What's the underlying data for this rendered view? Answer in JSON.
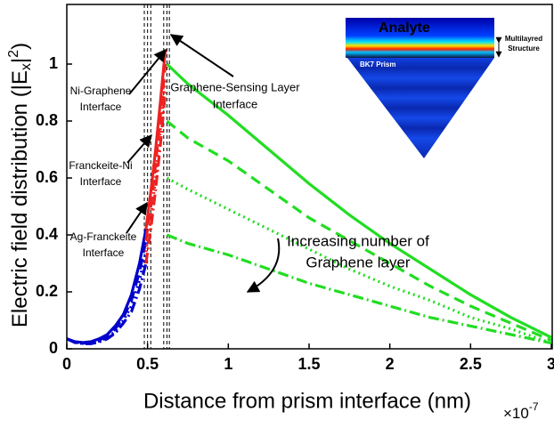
{
  "chart_data": {
    "type": "line",
    "xlabel": "Distance from prism interface (nm)",
    "ylabel_parts": [
      "Electric field distribution (|E",
      "x",
      "|",
      "2",
      ")"
    ],
    "x_multiplier_parts": [
      "×10",
      "-7"
    ],
    "xlim": [
      0,
      3
    ],
    "ylim": [
      0,
      1.2
    ],
    "xticks": [
      0,
      0.5,
      1,
      1.5,
      2,
      2.5,
      3
    ],
    "yticks": [
      0,
      0.2,
      0.4,
      0.6,
      0.8,
      1
    ],
    "interface_lines": [
      0.48,
      0.5,
      0.52,
      0.6,
      0.62,
      0.635
    ],
    "series": [
      {
        "color": "#0000cc",
        "dash": "solid",
        "x": [
          0,
          0.05,
          0.1,
          0.15,
          0.2,
          0.25,
          0.3,
          0.35,
          0.4,
          0.45,
          0.49
        ],
        "values": [
          0.035,
          0.025,
          0.022,
          0.025,
          0.035,
          0.05,
          0.08,
          0.12,
          0.19,
          0.3,
          0.42
        ]
      },
      {
        "color": "#0000cc",
        "dash": "dashed",
        "x": [
          0,
          0.05,
          0.1,
          0.15,
          0.2,
          0.25,
          0.3,
          0.35,
          0.4,
          0.45,
          0.49
        ],
        "values": [
          0.035,
          0.024,
          0.02,
          0.022,
          0.03,
          0.045,
          0.07,
          0.11,
          0.17,
          0.27,
          0.38
        ]
      },
      {
        "color": "#0000cc",
        "dash": "dotted",
        "x": [
          0,
          0.05,
          0.1,
          0.15,
          0.2,
          0.25,
          0.3,
          0.35,
          0.4,
          0.45,
          0.49
        ],
        "values": [
          0.035,
          0.023,
          0.019,
          0.02,
          0.027,
          0.04,
          0.06,
          0.1,
          0.15,
          0.24,
          0.34
        ]
      },
      {
        "color": "#0000cc",
        "dash": "dashdot",
        "x": [
          0,
          0.05,
          0.1,
          0.15,
          0.2,
          0.25,
          0.3,
          0.35,
          0.4,
          0.45,
          0.49
        ],
        "values": [
          0.035,
          0.022,
          0.018,
          0.018,
          0.024,
          0.035,
          0.055,
          0.09,
          0.13,
          0.21,
          0.3
        ]
      },
      {
        "color": "#ee2222",
        "dash": "solid",
        "x": [
          0.49,
          0.52,
          0.55,
          0.58,
          0.61
        ],
        "values": [
          0.42,
          0.55,
          0.7,
          0.87,
          1.05
        ]
      },
      {
        "color": "#ee2222",
        "dash": "dashed",
        "x": [
          0.49,
          0.52,
          0.55,
          0.58,
          0.61
        ],
        "values": [
          0.38,
          0.5,
          0.65,
          0.82,
          1.0
        ]
      },
      {
        "color": "#ee2222",
        "dash": "dotted",
        "x": [
          0.49,
          0.52,
          0.55,
          0.58,
          0.61
        ],
        "values": [
          0.34,
          0.46,
          0.6,
          0.77,
          0.95
        ]
      },
      {
        "color": "#ee2222",
        "dash": "dashdot",
        "x": [
          0.49,
          0.52,
          0.55,
          0.58,
          0.61
        ],
        "values": [
          0.3,
          0.42,
          0.56,
          0.72,
          0.9
        ]
      },
      {
        "color": "#22dd22",
        "dash": "solid",
        "x": [
          0.62,
          0.75,
          1,
          1.25,
          1.5,
          1.75,
          2,
          2.25,
          2.5,
          2.75,
          3
        ],
        "values": [
          1.0,
          0.93,
          0.82,
          0.7,
          0.58,
          0.47,
          0.37,
          0.28,
          0.19,
          0.11,
          0.04
        ]
      },
      {
        "color": "#22dd22",
        "dash": "dashed",
        "x": [
          0.62,
          0.75,
          1,
          1.25,
          1.5,
          1.75,
          2,
          2.25,
          2.5,
          2.75,
          3
        ],
        "values": [
          0.8,
          0.74,
          0.66,
          0.56,
          0.46,
          0.38,
          0.3,
          0.22,
          0.15,
          0.09,
          0.03
        ]
      },
      {
        "color": "#22dd22",
        "dash": "dotted",
        "x": [
          0.62,
          0.75,
          1,
          1.25,
          1.5,
          1.75,
          2,
          2.25,
          2.5,
          2.75,
          3
        ],
        "values": [
          0.6,
          0.56,
          0.49,
          0.42,
          0.35,
          0.28,
          0.22,
          0.17,
          0.11,
          0.07,
          0.02
        ]
      },
      {
        "color": "#22dd22",
        "dash": "dashdot",
        "x": [
          0.62,
          0.75,
          1,
          1.25,
          1.5,
          1.75,
          2,
          2.25,
          2.5,
          2.75,
          3
        ],
        "values": [
          0.4,
          0.37,
          0.33,
          0.28,
          0.23,
          0.19,
          0.15,
          0.11,
          0.08,
          0.05,
          0.02
        ]
      }
    ],
    "annotations": {
      "ni_graphene": [
        "Ni-Graphene",
        "Interface"
      ],
      "franckeite_ni": [
        "Franckeite-Ni",
        "Interface"
      ],
      "ag_franckeite": [
        "Ag-Franckeite",
        "Interface"
      ],
      "graphene_sensing": [
        "Graphene-Sensing Layer",
        "Interface"
      ],
      "increasing": [
        "Increasing number of",
        "Graphene layer"
      ]
    },
    "inset": {
      "analyte": "Analyte",
      "prism": "BK7 Prism",
      "structure": [
        "Multilayred",
        "Structure"
      ]
    }
  }
}
